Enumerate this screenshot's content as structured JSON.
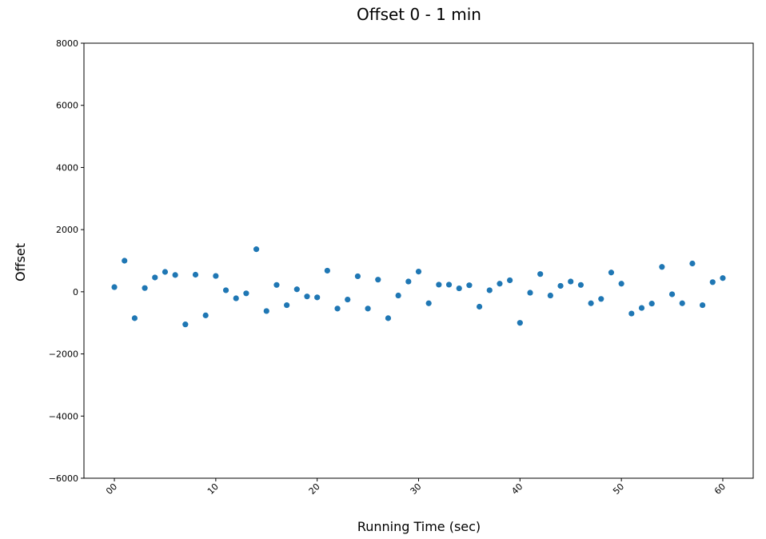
{
  "chart_data": {
    "type": "scatter",
    "title": "Offset 0 - 1 min",
    "xlabel": "Running Time (sec)",
    "ylabel": "Offset",
    "xlim": [
      -3,
      63
    ],
    "ylim": [
      -6000,
      8000
    ],
    "x_ticks": [
      "00",
      "10",
      "20",
      "30",
      "40",
      "50",
      "60"
    ],
    "x_tick_values": [
      0,
      10,
      20,
      30,
      40,
      50,
      60
    ],
    "y_ticks": [
      "−6000",
      "−4000",
      "−2000",
      "0",
      "2000",
      "4000",
      "6000",
      "8000"
    ],
    "y_tick_values": [
      -6000,
      -4000,
      -2000,
      0,
      2000,
      4000,
      6000,
      8000
    ],
    "grid": false,
    "marker_color": "#1f77b4",
    "x": [
      0,
      1,
      2,
      3,
      4,
      5,
      6,
      7,
      8,
      9,
      10,
      11,
      12,
      13,
      14,
      15,
      16,
      17,
      18,
      19,
      20,
      21,
      22,
      23,
      24,
      25,
      26,
      27,
      28,
      29,
      30,
      31,
      32,
      33,
      34,
      35,
      36,
      37,
      38,
      39,
      40,
      41,
      42,
      43,
      44,
      45,
      46,
      47,
      48,
      49,
      50,
      51,
      52,
      53,
      54,
      55,
      56,
      57,
      58,
      59,
      60
    ],
    "y": [
      150,
      1000,
      -850,
      120,
      460,
      640,
      540,
      -1050,
      550,
      -760,
      510,
      50,
      -210,
      -50,
      1370,
      -620,
      220,
      -430,
      80,
      -150,
      -180,
      680,
      -540,
      -250,
      500,
      -540,
      390,
      -850,
      -120,
      330,
      650,
      -370,
      230,
      230,
      110,
      210,
      -480,
      50,
      260,
      370,
      -1000,
      -30,
      570,
      -120,
      190,
      330,
      220,
      -370,
      -230,
      620,
      260,
      -700,
      -520,
      -380,
      800,
      -80,
      -370,
      910,
      -430,
      310,
      440
    ]
  }
}
